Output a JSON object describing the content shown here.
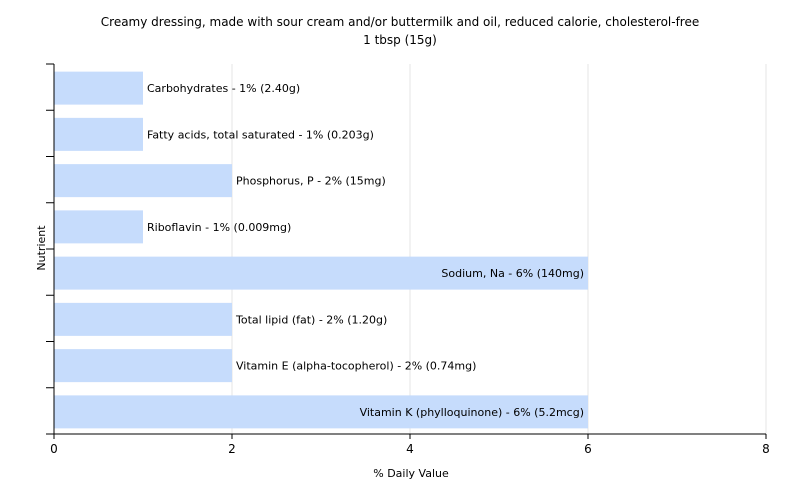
{
  "chart_data": {
    "type": "bar",
    "orientation": "horizontal",
    "title": "Creamy dressing, made with sour cream and/or buttermilk and oil, reduced calorie, cholesterol-free",
    "subtitle": "1 tbsp (15g)",
    "xlabel": "% Daily Value",
    "ylabel": "Nutrient",
    "xlim": [
      0,
      8
    ],
    "xticks": [
      "0",
      "2",
      "4",
      "6",
      "8"
    ],
    "grid": true,
    "bar_color": "#c6dcfc",
    "grid_color": "#e4e4e4",
    "categories": [
      "Carbohydrates",
      "Fatty acids, total saturated",
      "Phosphorus, P",
      "Riboflavin",
      "Sodium, Na",
      "Total lipid (fat)",
      "Vitamin E (alpha-tocopherol)",
      "Vitamin K (phylloquinone)"
    ],
    "values": [
      1,
      1,
      2,
      1,
      6,
      2,
      2,
      6
    ],
    "labels": [
      "Carbohydrates - 1% (2.40g)",
      "Fatty acids, total saturated - 1% (0.203g)",
      "Phosphorus, P - 2% (15mg)",
      "Riboflavin - 1% (0.009mg)",
      "Sodium, Na - 6% (140mg)",
      "Total lipid (fat) - 2% (1.20g)",
      "Vitamin E (alpha-tocopherol) - 2% (0.74mg)",
      "Vitamin K (phylloquinone) - 6% (5.2mcg)"
    ]
  }
}
